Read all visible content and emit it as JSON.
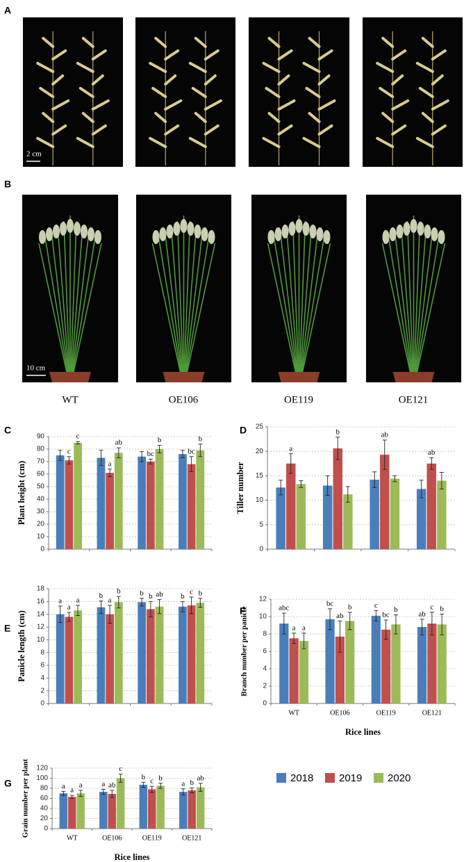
{
  "figure": {
    "panels": [
      "A",
      "B"
    ],
    "scale_bars": [
      "2 cm",
      "10 cm"
    ],
    "line_names": [
      "WT",
      "OE106",
      "OE119",
      "OE121"
    ]
  },
  "chart_data": [
    {
      "type": "bar",
      "panel": "C",
      "ylabel": "Plant height (cm)",
      "categories": [
        null,
        null,
        null,
        null
      ],
      "ylim": [
        0,
        90
      ],
      "yticks": [
        0,
        10,
        20,
        30,
        40,
        50,
        60,
        70,
        80,
        90
      ],
      "grid": true,
      "series": [
        {
          "color": "#4a7ebb",
          "values": [
            75,
            73,
            74,
            76
          ],
          "errors": [
            4,
            6,
            4,
            3
          ],
          "value_labels": [
            null,
            null,
            null,
            null
          ]
        },
        {
          "color": "#c0504d",
          "values": [
            71,
            61,
            70,
            68
          ],
          "errors": [
            3,
            3,
            2,
            6
          ],
          "value_labels": [
            "c",
            "a",
            "bc",
            "bc"
          ]
        },
        {
          "color": "#9bbb59",
          "values": [
            85,
            77,
            80,
            79
          ],
          "errors": [
            1,
            4,
            3,
            5
          ],
          "value_labels": [
            "c",
            "ab",
            "b",
            "b"
          ]
        }
      ]
    },
    {
      "type": "bar",
      "panel": "D",
      "ylabel": "Tiller number",
      "categories": [
        null,
        null,
        null,
        null
      ],
      "ylim": [
        0,
        25
      ],
      "yticks": [
        0,
        5,
        10,
        15,
        20,
        25
      ],
      "grid": true,
      "series": [
        {
          "color": "#4a7ebb",
          "values": [
            12.6,
            13,
            14.2,
            12.3
          ],
          "errors": [
            1.5,
            2,
            1.6,
            1.8
          ],
          "value_labels": [
            null,
            null,
            null,
            null
          ]
        },
        {
          "color": "#c0504d",
          "values": [
            17.5,
            20.6,
            19.3,
            17.5
          ],
          "errors": [
            2,
            2.3,
            3,
            1.2
          ],
          "value_labels": [
            "a",
            "b",
            "ab",
            "ab"
          ]
        },
        {
          "color": "#9bbb59",
          "values": [
            13.3,
            11.2,
            14.4,
            14
          ],
          "errors": [
            0.7,
            1.6,
            0.6,
            1.7
          ],
          "value_labels": [
            null,
            null,
            null,
            null
          ]
        }
      ]
    },
    {
      "type": "bar",
      "panel": "E",
      "ylabel": "Panicle length (cm)",
      "categories": [
        null,
        null,
        null,
        null
      ],
      "ylim": [
        0,
        18
      ],
      "yticks": [
        0,
        2,
        4,
        6,
        8,
        10,
        12,
        14,
        16,
        18
      ],
      "grid": true,
      "series": [
        {
          "color": "#4a7ebb",
          "values": [
            14,
            15.1,
            15.9,
            15.2
          ],
          "errors": [
            1.3,
            1,
            0.6,
            0.8
          ],
          "value_labels": [
            "a",
            "b",
            "b",
            "b"
          ]
        },
        {
          "color": "#c0504d",
          "values": [
            13.6,
            14,
            14.8,
            15.4
          ],
          "errors": [
            0.7,
            1.4,
            1.2,
            1.3
          ],
          "value_labels": [
            "a",
            "a",
            "b",
            "c"
          ]
        },
        {
          "color": "#9bbb59",
          "values": [
            14.6,
            15.9,
            15.2,
            15.8
          ],
          "errors": [
            0.8,
            0.9,
            1.1,
            0.7
          ],
          "value_labels": [
            "a",
            "b",
            "ab",
            "b"
          ]
        }
      ]
    },
    {
      "type": "bar",
      "panel": "F",
      "ylabel": "Branch number per panicle",
      "xlabel": "Rice lines",
      "categories": [
        "WT",
        "OE106",
        "OE119",
        "OE121"
      ],
      "ylim": [
        0,
        12
      ],
      "yticks": [
        0,
        2,
        4,
        6,
        8,
        10,
        12
      ],
      "grid": true,
      "series": [
        {
          "color": "#4a7ebb",
          "values": [
            9.2,
            9.7,
            10.1,
            8.8
          ],
          "errors": [
            1.2,
            1.2,
            0.6,
            0.9
          ],
          "value_labels": [
            "abc",
            "bc",
            "c",
            "ab"
          ]
        },
        {
          "color": "#c0504d",
          "values": [
            7.5,
            7.7,
            8.5,
            9.2
          ],
          "errors": [
            0.6,
            1.8,
            1.1,
            1.3
          ],
          "value_labels": [
            "a",
            "ab",
            "bc",
            "c"
          ]
        },
        {
          "color": "#9bbb59",
          "values": [
            7.2,
            9.5,
            9.1,
            9.1
          ],
          "errors": [
            0.9,
            1,
            1.1,
            1.2
          ],
          "value_labels": [
            "a",
            "b",
            "b",
            "b"
          ]
        }
      ]
    },
    {
      "type": "bar",
      "panel": "G",
      "ylabel": "Grain number per plant",
      "xlabel": "Rice lines",
      "categories": [
        "WT",
        "OE106",
        "OE119",
        "OE121"
      ],
      "ylim": [
        0,
        120
      ],
      "yticks": [
        0,
        20,
        40,
        60,
        80,
        100,
        120
      ],
      "grid": true,
      "series": [
        {
          "name": "2018",
          "color": "#4a7ebb",
          "values": [
            70,
            73,
            87,
            73
          ],
          "errors": [
            4,
            5,
            5,
            6
          ],
          "value_labels": [
            "a",
            "a",
            "b",
            "a"
          ]
        },
        {
          "name": "2019",
          "color": "#c0504d",
          "values": [
            63,
            69,
            78,
            76
          ],
          "errors": [
            3,
            7,
            6,
            5
          ],
          "value_labels": [
            "a",
            "ab",
            "c",
            "b"
          ]
        },
        {
          "name": "2020",
          "color": "#9bbb59",
          "values": [
            70,
            100,
            85,
            82
          ],
          "errors": [
            6,
            8,
            5,
            8
          ],
          "value_labels": [
            "a",
            "c",
            "b",
            "ab"
          ]
        }
      ]
    }
  ]
}
